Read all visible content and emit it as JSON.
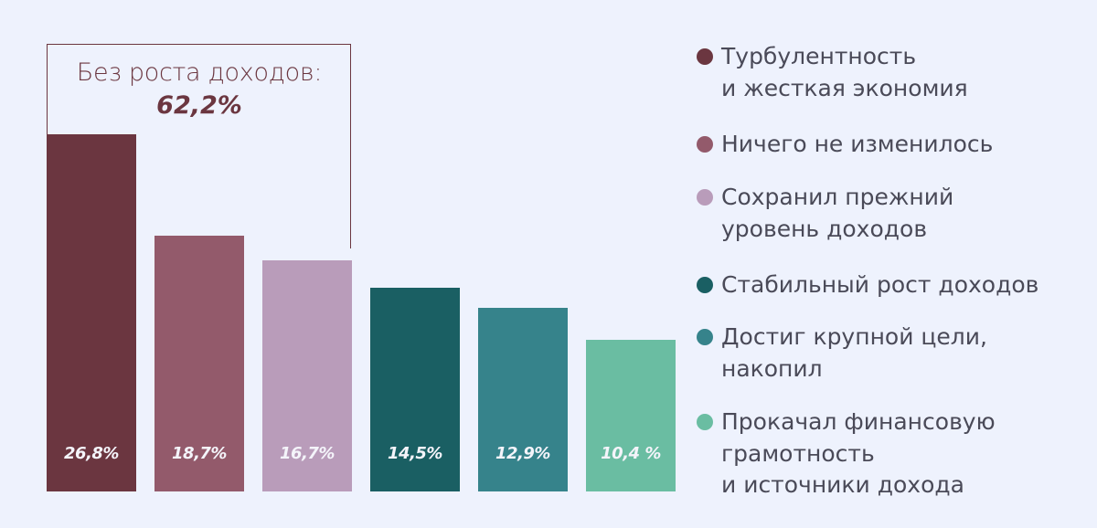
{
  "chart_data": {
    "type": "bar",
    "categories": [
      "Турбулентность\nи жесткая экономия",
      "Ничего не изменилось",
      "Сохранил прежний\nуровень доходов",
      "Стабильный рост доходов",
      "Достиг крупной цели,\nнакопил",
      "Прокачал финансовую\nграмотность\nи источники дохода"
    ],
    "values": [
      26.8,
      18.7,
      16.7,
      14.5,
      12.9,
      10.4
    ],
    "data_labels": [
      "26,8%",
      "18,7%",
      "16,7%",
      "14,5%",
      "12,9%",
      "10,4 %"
    ],
    "colors": [
      "#6b3640",
      "#935a6b",
      "#b99cba",
      "#1a5f63",
      "#36838b",
      "#6abda2"
    ],
    "legend_placement": "right",
    "grid": false,
    "annotation": {
      "title": "Без роста доходов:",
      "value": "62,2%"
    }
  }
}
